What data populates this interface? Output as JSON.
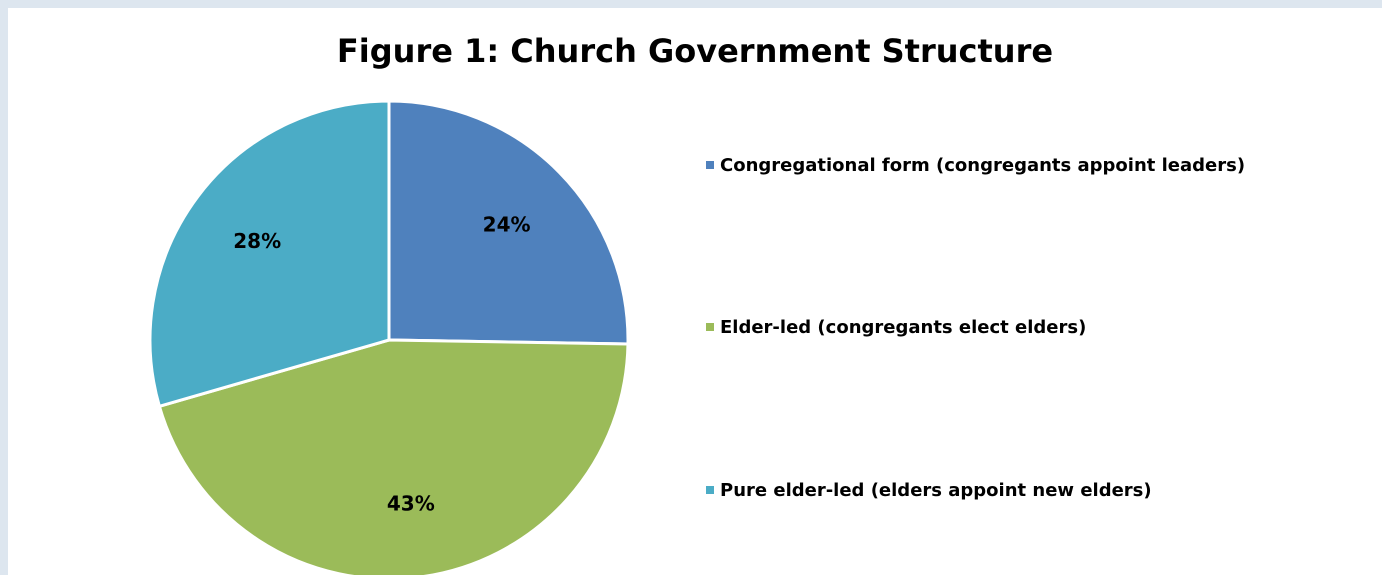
{
  "chart_data": {
    "type": "pie",
    "title": "Figure 1: Church Government Structure",
    "categories": [
      "Congregational form (congregants appoint leaders)",
      "Elder-led (congregants elect elders)",
      "Pure elder-led (elders appoint new elders)"
    ],
    "values": [
      24,
      43,
      28
    ],
    "data_labels": [
      "24%",
      "43%",
      "28%"
    ],
    "colors": [
      "#4f81bd",
      "#9bbb59",
      "#4bacc6"
    ],
    "legend_position": "right",
    "start_angle": "12 o'clock",
    "direction": "clockwise"
  }
}
